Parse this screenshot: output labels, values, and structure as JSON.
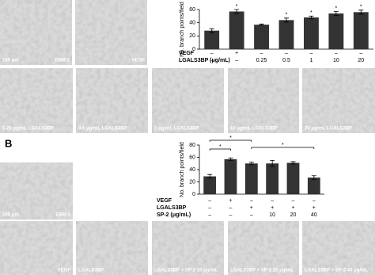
{
  "chart_data": [
    {
      "type": "bar",
      "ylabel": "No. branch points/field",
      "ylim": [
        0,
        60
      ],
      "yticks": [
        0,
        20,
        40,
        60
      ],
      "color": "#333333",
      "series": [
        {
          "values": [
            28,
            57,
            37,
            44,
            48,
            54,
            56
          ],
          "errors": [
            3,
            3,
            1,
            3,
            2,
            3,
            3
          ]
        }
      ],
      "conditions": [
        {
          "label": "VEGF",
          "values": [
            "–",
            "+",
            "–",
            "–",
            "–",
            "–",
            "–"
          ]
        },
        {
          "label": "LGALS3BP (μg/mL)",
          "values": [
            "–",
            "–",
            "0.25",
            "0.5",
            "1",
            "10",
            "20"
          ]
        }
      ],
      "significance_marks": [
        {
          "label": "*",
          "bars": [
            1
          ]
        },
        {
          "label": "*",
          "bars": [
            3
          ]
        },
        {
          "label": "*",
          "bars": [
            4
          ]
        },
        {
          "label": "*",
          "bars": [
            5
          ]
        },
        {
          "label": "*",
          "bars": [
            6
          ]
        }
      ]
    },
    {
      "type": "bar",
      "ylabel": "No. branch points/field",
      "ylim": [
        0,
        80
      ],
      "yticks": [
        0,
        20,
        40,
        60,
        80
      ],
      "color": "#333333",
      "series": [
        {
          "values": [
            29,
            57,
            50,
            50,
            51,
            27
          ],
          "errors": [
            3,
            2,
            2,
            5,
            2,
            3
          ]
        }
      ],
      "conditions": [
        {
          "label": "VEGF",
          "values": [
            "–",
            "+",
            "–",
            "–",
            "–",
            "–"
          ]
        },
        {
          "label": "LGALS3BP",
          "values": [
            "–",
            "–",
            "+",
            "+",
            "+",
            "+"
          ]
        },
        {
          "label": "SP-2 (μg/mL)",
          "values": [
            "–",
            "–",
            "–",
            "10",
            "20",
            "40"
          ]
        }
      ],
      "significance_marks": [
        {
          "label": "*",
          "bars": [
            0,
            1
          ]
        },
        {
          "label": "*",
          "bars": [
            0,
            2
          ]
        },
        {
          "label": "*",
          "bars": [
            2,
            5
          ]
        }
      ]
    }
  ],
  "panel_a": {
    "images": [
      {
        "scale": "100 μm",
        "caption": "EBM-2"
      },
      {
        "caption": "VEGF"
      },
      {
        "caption": "0.25 μg/mL LGALS3BP"
      },
      {
        "caption": "0.5 μg/mL LGALS3BP"
      },
      {
        "caption": "1 μg/mL LGALS3BP"
      },
      {
        "caption": "10 μg/mL LGALS3BP"
      },
      {
        "caption": "20 μg/mL LGALS3BP"
      }
    ]
  },
  "panel_b": {
    "label": "B",
    "images": [
      {
        "scale": "100 μm",
        "caption": "EBM-2"
      },
      {
        "caption": "VEGF"
      },
      {
        "caption": "LGALS3BP"
      },
      {
        "caption": "LGALS3BP + SP-2 10 μg/mL"
      },
      {
        "caption": "LGALS3BP + SP-2 20 μg/mL"
      },
      {
        "caption": "LGALS3BP + SP-2 40 μg/mL"
      }
    ]
  }
}
